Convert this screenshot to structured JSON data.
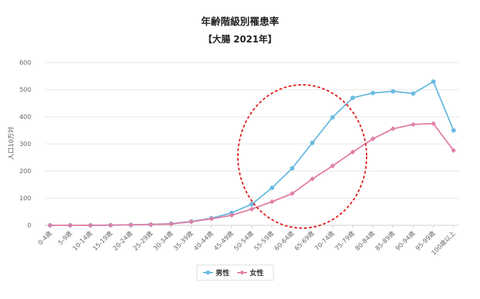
{
  "chart_data": {
    "type": "line",
    "title": "年齢階級別罹患率",
    "subtitle": "【大腸 2021年】",
    "ylabel": "人口10万対",
    "xlabel": "",
    "ylim": [
      0,
      600
    ],
    "yticks": [
      0,
      100,
      200,
      300,
      400,
      500,
      600
    ],
    "grid": true,
    "legend_position": "bottom",
    "categories": [
      "0-4歳",
      "5-9歳",
      "10-14歳",
      "15-19歳",
      "20-24歳",
      "25-29歳",
      "30-34歳",
      "35-39歳",
      "40-44歳",
      "45-49歳",
      "50-54歳",
      "55-59歳",
      "60-64歳",
      "65-69歳",
      "70-74歳",
      "75-79歳",
      "80-84歳",
      "85-89歳",
      "90-94歳",
      "95-99歳",
      "100歳以上"
    ],
    "series": [
      {
        "name": "男性",
        "color": "#6bbbe0",
        "marker": "circle",
        "values": [
          0,
          0,
          0,
          0.5,
          1.5,
          3,
          6,
          14,
          26,
          46,
          78,
          138,
          210,
          304,
          398,
          470,
          488,
          494,
          486,
          530,
          350
        ]
      },
      {
        "name": "女性",
        "color": "#e07fa8",
        "marker": "diamond",
        "values": [
          0,
          0,
          0,
          0.5,
          1.5,
          3,
          5,
          13,
          24,
          37,
          60,
          87,
          117,
          171,
          219,
          270,
          319,
          356,
          372,
          375,
          276
        ]
      }
    ],
    "annotation": {
      "shape": "dashed-ellipse",
      "color": "#e02020",
      "highlights_categories": [
        "50-54歳",
        "75-79歳"
      ]
    }
  }
}
